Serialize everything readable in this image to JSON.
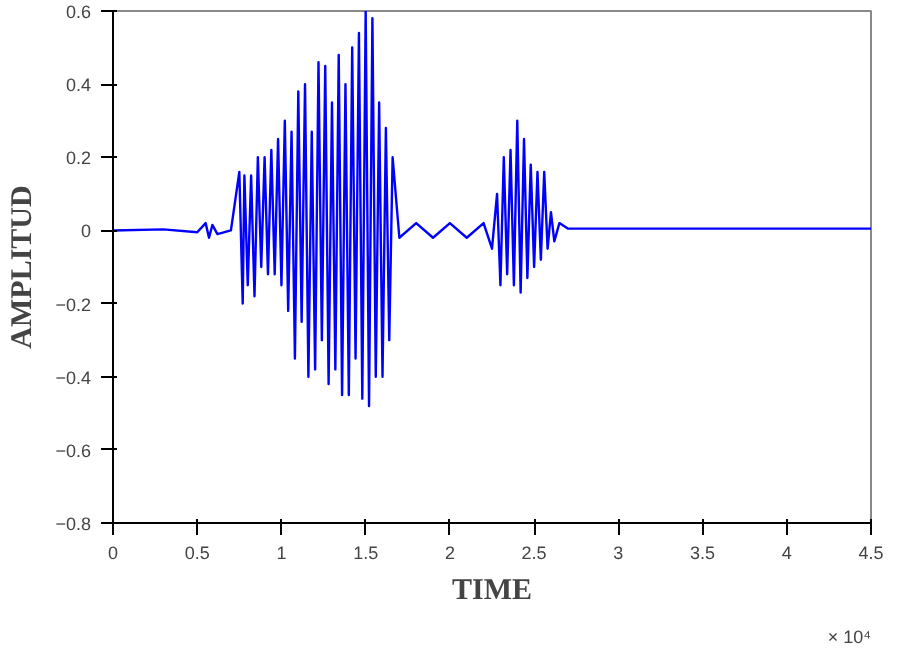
{
  "chart_data": {
    "type": "line",
    "xlabel": "TIME",
    "ylabel": "AMPLITUD",
    "annotations": [
      "× 10⁴"
    ],
    "xlim": [
      0,
      4.5
    ],
    "ylim": [
      -0.8,
      0.6
    ],
    "xticks": [
      0,
      0.5,
      1,
      1.5,
      2,
      2.5,
      3,
      3.5,
      4,
      4.5
    ],
    "yticks": [
      -0.8,
      -0.6,
      -0.4,
      -0.2,
      0,
      0.2,
      0.4,
      0.6
    ],
    "grid": false,
    "series": [
      {
        "color": "#0000ff",
        "x": [
          0,
          0.3,
          0.5,
          0.55,
          0.57,
          0.59,
          0.62,
          0.7,
          0.75,
          0.77,
          0.78,
          0.8,
          0.82,
          0.84,
          0.86,
          0.88,
          0.9,
          0.92,
          0.94,
          0.96,
          0.98,
          1.0,
          1.02,
          1.04,
          1.06,
          1.08,
          1.1,
          1.12,
          1.14,
          1.16,
          1.18,
          1.2,
          1.22,
          1.24,
          1.26,
          1.28,
          1.3,
          1.32,
          1.34,
          1.36,
          1.38,
          1.4,
          1.42,
          1.44,
          1.46,
          1.48,
          1.5,
          1.52,
          1.54,
          1.56,
          1.58,
          1.6,
          1.62,
          1.64,
          1.66,
          1.7,
          1.8,
          1.9,
          2.0,
          2.1,
          2.2,
          2.25,
          2.28,
          2.3,
          2.32,
          2.34,
          2.36,
          2.38,
          2.4,
          2.42,
          2.44,
          2.46,
          2.48,
          2.5,
          2.52,
          2.54,
          2.56,
          2.58,
          2.6,
          2.62,
          2.65,
          2.7,
          3.0,
          4.5
        ],
        "values": [
          0,
          0.003,
          -0.005,
          0.02,
          -0.02,
          0.015,
          -0.01,
          0,
          0.16,
          -0.2,
          0.15,
          -0.15,
          0.15,
          -0.18,
          0.2,
          -0.1,
          0.2,
          -0.12,
          0.22,
          -0.12,
          0.25,
          -0.15,
          0.3,
          -0.22,
          0.27,
          -0.35,
          0.38,
          -0.25,
          0.4,
          -0.4,
          0.27,
          -0.38,
          0.46,
          -0.3,
          0.45,
          -0.42,
          0.35,
          -0.38,
          0.48,
          -0.45,
          0.4,
          -0.45,
          0.5,
          -0.35,
          0.54,
          -0.46,
          0.6,
          -0.48,
          0.58,
          -0.4,
          0.35,
          -0.4,
          0.28,
          -0.3,
          0.2,
          -0.02,
          0.02,
          -0.02,
          0.02,
          -0.02,
          0.02,
          -0.05,
          0.1,
          -0.15,
          0.2,
          -0.12,
          0.22,
          -0.15,
          0.3,
          -0.17,
          0.25,
          -0.13,
          0.18,
          -0.1,
          0.16,
          -0.08,
          0.16,
          -0.05,
          0.05,
          -0.03,
          0.02,
          0.005,
          0.005,
          0.005
        ]
      }
    ]
  }
}
